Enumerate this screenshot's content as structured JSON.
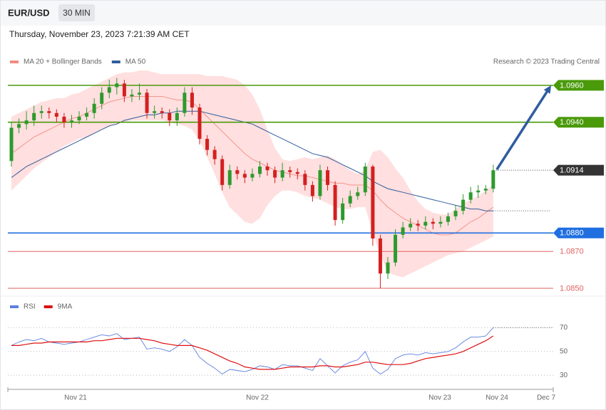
{
  "header": {
    "symbol": "EUR/USD",
    "interval": "30 MIN",
    "timestamp": "Thursday, November 23, 2023 7:21:39 AM CET"
  },
  "chart_data": [
    {
      "type": "candlestick",
      "credit": "Research © 2023 Trading Central",
      "up_color": "#2e9a2e",
      "down_color": "#d42020",
      "ylim": [
        1.0845,
        1.0975
      ],
      "open": [
        1.0919,
        1.0937,
        1.0939,
        1.0941,
        1.0945,
        1.0946,
        1.0945,
        1.0943,
        1.094,
        1.0941,
        1.0943,
        1.0945,
        1.095,
        1.0956,
        1.0959,
        1.0961,
        1.0954,
        1.0955,
        1.0956,
        1.0945,
        1.0946,
        1.0945,
        1.0941,
        1.0945,
        1.0956,
        1.0948,
        1.0931,
        1.0925,
        1.092,
        1.0906,
        1.0914,
        1.0912,
        1.091,
        1.0912,
        1.0916,
        1.0914,
        1.091,
        1.0914,
        1.0913,
        1.0912,
        1.0906,
        1.09,
        1.0914,
        1.0906,
        1.0887,
        1.0896,
        1.09,
        1.0902,
        1.0916,
        1.0877,
        1.0858,
        1.0864,
        1.0879,
        1.0883,
        1.0885,
        1.0884,
        1.0886,
        1.0885,
        1.0886,
        1.0889,
        1.0892,
        1.0898,
        1.0902,
        1.0903,
        1.0904
      ],
      "high": [
        1.094,
        1.0942,
        1.0946,
        1.0949,
        1.0949,
        1.0948,
        1.0947,
        1.0945,
        1.0944,
        1.0946,
        1.0948,
        1.0953,
        1.0959,
        1.0963,
        1.0964,
        1.0963,
        1.0958,
        1.0961,
        1.0958,
        1.0949,
        1.0948,
        1.0947,
        1.0948,
        1.0959,
        1.0959,
        1.095,
        1.0933,
        1.0927,
        1.0922,
        1.0917,
        1.0916,
        1.0914,
        1.0915,
        1.0919,
        1.0918,
        1.0916,
        1.0918,
        1.0916,
        1.0915,
        1.0914,
        1.0908,
        1.0917,
        1.0916,
        1.0908,
        1.0899,
        1.0903,
        1.0905,
        1.0918,
        1.0917,
        1.0879,
        1.0867,
        1.0882,
        1.0886,
        1.0888,
        1.0887,
        1.0889,
        1.0888,
        1.0889,
        1.0891,
        1.0895,
        1.0901,
        1.0905,
        1.0906,
        1.0906,
        1.0917
      ],
      "low": [
        1.0916,
        1.0934,
        1.0936,
        1.0938,
        1.0942,
        1.0942,
        1.094,
        1.0937,
        1.0937,
        1.0939,
        1.0941,
        1.0942,
        1.0947,
        1.0953,
        1.0955,
        1.0951,
        1.0951,
        1.0952,
        1.0942,
        1.0942,
        1.0942,
        1.0938,
        1.0938,
        1.0943,
        1.0944,
        1.0928,
        1.0922,
        1.0917,
        1.0903,
        1.0904,
        1.0909,
        1.0907,
        1.0908,
        1.091,
        1.0911,
        1.0907,
        1.0908,
        1.091,
        1.0909,
        1.0903,
        1.0897,
        1.0898,
        1.0903,
        1.0884,
        1.0885,
        1.0894,
        1.0898,
        1.09,
        1.0873,
        1.085,
        1.0855,
        1.0862,
        1.0877,
        1.0881,
        1.0881,
        1.0882,
        1.0882,
        1.0883,
        1.0884,
        1.0887,
        1.089,
        1.0896,
        1.0899,
        1.0901,
        1.0902
      ],
      "close": [
        1.0937,
        1.0939,
        1.0941,
        1.0945,
        1.0946,
        1.0945,
        1.0943,
        1.094,
        1.0941,
        1.0943,
        1.0945,
        1.095,
        1.0956,
        1.0959,
        1.0961,
        1.0954,
        1.0955,
        1.0956,
        1.0945,
        1.0946,
        1.0945,
        1.0941,
        1.0945,
        1.0956,
        1.0948,
        1.0931,
        1.0925,
        1.092,
        1.0906,
        1.0914,
        1.0912,
        1.091,
        1.0912,
        1.0916,
        1.0914,
        1.091,
        1.0914,
        1.0913,
        1.0912,
        1.0906,
        1.09,
        1.0914,
        1.0906,
        1.0887,
        1.0896,
        1.09,
        1.0902,
        1.0916,
        1.0877,
        1.0858,
        1.0864,
        1.0879,
        1.0883,
        1.0885,
        1.0884,
        1.0886,
        1.0885,
        1.0886,
        1.0889,
        1.0892,
        1.0898,
        1.0902,
        1.0903,
        1.0904,
        1.0914
      ],
      "series": [
        {
          "name": "MA 20 + Bollinger Bands",
          "color": "#f28b82",
          "band_color": "#ffd9d9",
          "values": [
            1.0923,
            1.0926,
            1.0929,
            1.0932,
            1.0934,
            1.0936,
            1.0938,
            1.094,
            1.0942,
            1.0943,
            1.0945,
            1.0947,
            1.0949,
            1.0951,
            1.0952,
            1.0953,
            1.0954,
            1.0954,
            1.0954,
            1.0954,
            1.0954,
            1.0953,
            1.0952,
            1.0952,
            1.0951,
            1.0947,
            1.0943,
            1.0939,
            1.0935,
            1.0931,
            1.0927,
            1.0923,
            1.092,
            1.0918,
            1.0916,
            1.0914,
            1.0913,
            1.0912,
            1.0911,
            1.0911,
            1.091,
            1.0909,
            1.0908,
            1.0907,
            1.0907,
            1.0906,
            1.0906,
            1.0906,
            1.0903,
            1.0898,
            1.0894,
            1.0891,
            1.0888,
            1.0886,
            1.0884,
            1.0882,
            1.088,
            1.0879,
            1.0879,
            1.088,
            1.0883,
            1.0886,
            1.0888,
            1.0891,
            1.0894
          ],
          "upper": [
            1.0943,
            1.0945,
            1.0947,
            1.0949,
            1.0951,
            1.0952,
            1.0953,
            1.0953,
            1.0955,
            1.0956,
            1.0958,
            1.096,
            1.0962,
            1.0964,
            1.0966,
            1.0967,
            1.0967,
            1.0968,
            1.0968,
            1.0967,
            1.0966,
            1.0966,
            1.0966,
            1.0966,
            1.0966,
            1.0966,
            1.0965,
            1.0965,
            1.0965,
            1.0964,
            1.0963,
            1.096,
            1.0955,
            1.0947,
            1.0936,
            1.0926,
            1.092,
            1.0919,
            1.092,
            1.0921,
            1.092,
            1.0921,
            1.0922,
            1.092,
            1.0917,
            1.0914,
            1.0912,
            1.0914,
            1.0924,
            1.0925,
            1.0921,
            1.0915,
            1.091,
            1.0903,
            1.0897,
            1.0893,
            1.0891,
            1.089,
            1.089,
            1.0893,
            1.0896,
            1.0898,
            1.09,
            1.0903,
            1.0906
          ],
          "lower": [
            1.0903,
            1.0907,
            1.0911,
            1.0915,
            1.0918,
            1.0921,
            1.0924,
            1.0927,
            1.0929,
            1.0931,
            1.0932,
            1.0934,
            1.0936,
            1.0938,
            1.0939,
            1.094,
            1.0941,
            1.0941,
            1.0941,
            1.0941,
            1.0941,
            1.094,
            1.0939,
            1.0938,
            1.0936,
            1.093,
            1.0921,
            1.0912,
            1.0902,
            1.0894,
            1.089,
            1.0886,
            1.0885,
            1.0888,
            1.0895,
            1.09,
            1.0903,
            1.0903,
            1.0902,
            1.09,
            1.0899,
            1.0898,
            1.0896,
            1.0894,
            1.0893,
            1.0893,
            1.0894,
            1.0894,
            1.088,
            1.0868,
            1.0859,
            1.0857,
            1.0856,
            1.0858,
            1.086,
            1.0862,
            1.0864,
            1.0866,
            1.0868,
            1.0869,
            1.087,
            1.0872,
            1.0874,
            1.0876,
            1.0878
          ]
        },
        {
          "name": "MA 50",
          "color": "#2f5d9e",
          "values": [
            1.091,
            1.0913,
            1.0916,
            1.0918,
            1.092,
            1.0922,
            1.0924,
            1.0926,
            1.0928,
            1.093,
            1.0932,
            1.0934,
            1.0936,
            1.0938,
            1.0939,
            1.0941,
            1.0942,
            1.0943,
            1.0944,
            1.0944,
            1.0945,
            1.0945,
            1.0946,
            1.0946,
            1.0946,
            1.0946,
            1.0945,
            1.0944,
            1.0943,
            1.0942,
            1.0941,
            1.094,
            1.0939,
            1.0937,
            1.0935,
            1.0933,
            1.0931,
            1.0929,
            1.0927,
            1.0925,
            1.0923,
            1.0922,
            1.0921,
            1.0919,
            1.0917,
            1.0915,
            1.0913,
            1.0911,
            1.0908,
            1.0906,
            1.0904,
            1.0903,
            1.0902,
            1.0901,
            1.09,
            1.0899,
            1.0898,
            1.0897,
            1.0896,
            1.0895,
            1.0894,
            1.0893,
            1.0893,
            1.0892,
            1.0892
          ]
        }
      ],
      "levels": [
        {
          "value": 1.096,
          "label": "1.0960",
          "color": "#4a9a0a",
          "tagged": true
        },
        {
          "value": 1.094,
          "label": "1.0940",
          "color": "#4a9a0a",
          "tagged": true
        },
        {
          "value": 1.088,
          "label": "1.0880",
          "color": "#1f6fe0",
          "tagged": true
        },
        {
          "value": 1.087,
          "label": "1.0870",
          "color": "#e06060",
          "tagged": false
        },
        {
          "value": 1.085,
          "label": "1.0850",
          "color": "#e06060",
          "tagged": false
        }
      ],
      "last_price": {
        "value": 1.0914,
        "label": "1.0914",
        "color": "#333333"
      },
      "forecast_color": "#2f5d9e"
    },
    {
      "type": "line",
      "ylim": [
        20,
        80
      ],
      "yticks": [
        30,
        50,
        70
      ],
      "grid": true,
      "x_labels": [
        "Nov 21",
        "Nov 22",
        "Nov 23",
        "Nov 24",
        "Dec 7"
      ],
      "series": [
        {
          "name": "RSI",
          "color": "#5b7fe0",
          "values": [
            55,
            58,
            60,
            59,
            61,
            58,
            57,
            56,
            57,
            58,
            60,
            62,
            64,
            63,
            65,
            60,
            61,
            62,
            52,
            53,
            52,
            50,
            54,
            60,
            55,
            45,
            40,
            36,
            31,
            35,
            34,
            33,
            35,
            38,
            37,
            35,
            39,
            38,
            38,
            36,
            34,
            44,
            38,
            32,
            38,
            41,
            43,
            50,
            36,
            31,
            35,
            44,
            47,
            48,
            47,
            49,
            48,
            49,
            50,
            53,
            58,
            62,
            62,
            63,
            70
          ]
        },
        {
          "name": "9MA",
          "color": "#e01010",
          "values": [
            55,
            55,
            56,
            57,
            57,
            58,
            58,
            58,
            58,
            58,
            58,
            59,
            59,
            60,
            61,
            61,
            61,
            61,
            60,
            59,
            57,
            56,
            55,
            55,
            55,
            53,
            51,
            48,
            45,
            42,
            40,
            37,
            36,
            35,
            35,
            35,
            36,
            37,
            37,
            37,
            37,
            38,
            38,
            37,
            37,
            38,
            39,
            41,
            41,
            40,
            39,
            39,
            39,
            40,
            42,
            44,
            45,
            46,
            47,
            48,
            50,
            53,
            56,
            59,
            63
          ]
        }
      ]
    }
  ]
}
